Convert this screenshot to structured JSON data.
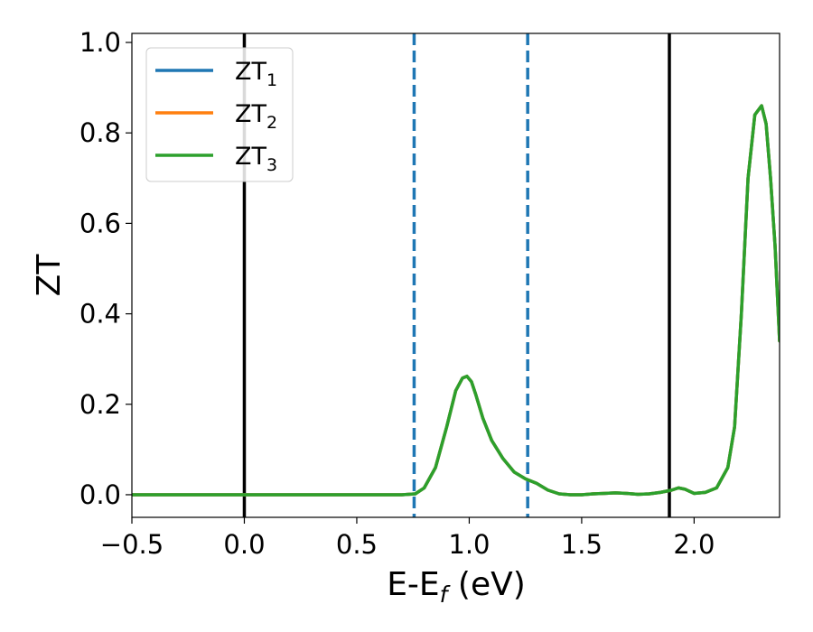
{
  "chart_data": {
    "type": "line",
    "xlabel_main": "E-E",
    "xlabel_sub": "f",
    "xlabel_unit": " (eV)",
    "ylabel": "ZT",
    "xlim": [
      -0.5,
      2.38
    ],
    "ylim": [
      -0.05,
      1.02
    ],
    "xticks": [
      -0.5,
      0.0,
      0.5,
      1.0,
      1.5,
      2.0
    ],
    "xtick_labels": [
      "−0.5",
      "0.0",
      "0.5",
      "1.0",
      "1.5",
      "2.0"
    ],
    "yticks": [
      0.0,
      0.2,
      0.4,
      0.6,
      0.8,
      1.0
    ],
    "ytick_labels": [
      "0.0",
      "0.2",
      "0.4",
      "0.6",
      "0.8",
      "1.0"
    ],
    "grid": false,
    "legend_position": "top-left",
    "vlines": [
      {
        "x": 0.0,
        "style": "solid",
        "color": "#000000"
      },
      {
        "x": 1.89,
        "style": "solid",
        "color": "#000000"
      },
      {
        "x": 0.755,
        "style": "dashed",
        "color": "#1f77b4"
      },
      {
        "x": 1.26,
        "style": "dashed",
        "color": "#1f77b4"
      }
    ],
    "series": [
      {
        "name": "ZT",
        "subscript": "1",
        "color": "#1f77b4",
        "x": [
          -0.5,
          0.0,
          0.5,
          0.7,
          0.76,
          0.8,
          0.85,
          0.9,
          0.94,
          0.97,
          0.99,
          1.01,
          1.03,
          1.06,
          1.1,
          1.15,
          1.2,
          1.25,
          1.3,
          1.35,
          1.4,
          1.45,
          1.5,
          1.55,
          1.6,
          1.65,
          1.7,
          1.75,
          1.8,
          1.85,
          1.9,
          1.93,
          1.96,
          2.0,
          2.05,
          2.1,
          2.15,
          2.18,
          2.21,
          2.24,
          2.27,
          2.3,
          2.32,
          2.34,
          2.36,
          2.38
        ],
        "y": [
          0.0,
          0.0,
          0.0,
          0.0,
          0.002,
          0.015,
          0.06,
          0.15,
          0.23,
          0.258,
          0.262,
          0.25,
          0.22,
          0.17,
          0.12,
          0.08,
          0.05,
          0.035,
          0.025,
          0.01,
          0.002,
          0.0,
          0.0,
          0.002,
          0.003,
          0.004,
          0.003,
          0.001,
          0.002,
          0.005,
          0.01,
          0.015,
          0.012,
          0.003,
          0.005,
          0.015,
          0.06,
          0.15,
          0.4,
          0.7,
          0.84,
          0.86,
          0.82,
          0.7,
          0.55,
          0.34
        ]
      },
      {
        "name": "ZT",
        "subscript": "2",
        "color": "#ff7f0e",
        "x": [
          -0.5,
          0.0,
          0.5,
          0.7,
          0.76,
          0.8,
          0.85,
          0.9,
          0.94,
          0.97,
          0.99,
          1.01,
          1.03,
          1.06,
          1.1,
          1.15,
          1.2,
          1.25,
          1.3,
          1.35,
          1.4,
          1.45,
          1.5,
          1.55,
          1.6,
          1.65,
          1.7,
          1.75,
          1.8,
          1.85,
          1.9,
          1.93,
          1.96,
          2.0,
          2.05,
          2.1,
          2.15,
          2.18,
          2.21,
          2.24,
          2.27,
          2.3,
          2.32,
          2.34,
          2.36,
          2.38
        ],
        "y": [
          0.0,
          0.0,
          0.0,
          0.0,
          0.002,
          0.015,
          0.06,
          0.15,
          0.23,
          0.258,
          0.262,
          0.25,
          0.22,
          0.17,
          0.12,
          0.08,
          0.05,
          0.035,
          0.025,
          0.01,
          0.002,
          0.0,
          0.0,
          0.002,
          0.003,
          0.004,
          0.003,
          0.001,
          0.002,
          0.005,
          0.01,
          0.015,
          0.012,
          0.003,
          0.005,
          0.015,
          0.06,
          0.15,
          0.4,
          0.7,
          0.84,
          0.86,
          0.82,
          0.7,
          0.55,
          0.34
        ]
      },
      {
        "name": "ZT",
        "subscript": "3",
        "color": "#2ca02c",
        "x": [
          -0.5,
          0.0,
          0.5,
          0.7,
          0.76,
          0.8,
          0.85,
          0.9,
          0.94,
          0.97,
          0.99,
          1.01,
          1.03,
          1.06,
          1.1,
          1.15,
          1.2,
          1.25,
          1.3,
          1.35,
          1.4,
          1.45,
          1.5,
          1.55,
          1.6,
          1.65,
          1.7,
          1.75,
          1.8,
          1.85,
          1.9,
          1.93,
          1.96,
          2.0,
          2.05,
          2.1,
          2.15,
          2.18,
          2.21,
          2.24,
          2.27,
          2.3,
          2.32,
          2.34,
          2.36,
          2.38
        ],
        "y": [
          0.0,
          0.0,
          0.0,
          0.0,
          0.002,
          0.015,
          0.06,
          0.15,
          0.23,
          0.258,
          0.262,
          0.25,
          0.22,
          0.17,
          0.12,
          0.08,
          0.05,
          0.035,
          0.025,
          0.01,
          0.002,
          0.0,
          0.0,
          0.002,
          0.003,
          0.004,
          0.003,
          0.001,
          0.002,
          0.005,
          0.01,
          0.015,
          0.012,
          0.003,
          0.005,
          0.015,
          0.06,
          0.15,
          0.4,
          0.7,
          0.84,
          0.86,
          0.82,
          0.7,
          0.55,
          0.34
        ]
      }
    ]
  }
}
